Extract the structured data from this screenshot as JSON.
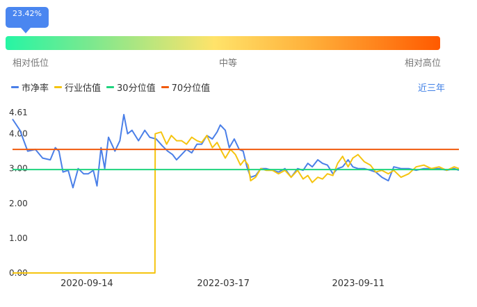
{
  "gauge": {
    "percentile_label": "23.42%",
    "percentile": 23.42,
    "low_label": "相对低位",
    "mid_label": "中等",
    "high_label": "相对高位",
    "colors": [
      "#26f5a4",
      "#ffe36a",
      "#ff5a00"
    ]
  },
  "period_label": "近三年",
  "chart_data": {
    "type": "line",
    "title": "",
    "xlabel": "",
    "ylabel": "",
    "ylim": [
      0,
      4.61
    ],
    "y_ticks": [
      "0.00",
      "1.00",
      "2.00",
      "3.00",
      "4.00",
      "4.61"
    ],
    "x_ticks": [
      "2020-09-14",
      "2022-03-17",
      "2023-09-11"
    ],
    "x_range": [
      "2019-11-20",
      "2024-10-20"
    ],
    "legend_position": "top-left",
    "grid": false,
    "series": [
      {
        "name": "市净率",
        "color": "#4a7fe8",
        "points": [
          [
            "2019-11-20",
            4.42
          ],
          [
            "2019-12-20",
            4.1
          ],
          [
            "2020-01-20",
            3.5
          ],
          [
            "2020-02-20",
            3.55
          ],
          [
            "2020-03-20",
            3.3
          ],
          [
            "2020-04-20",
            3.25
          ],
          [
            "2020-05-10",
            3.6
          ],
          [
            "2020-05-25",
            3.5
          ],
          [
            "2020-06-10",
            2.9
          ],
          [
            "2020-07-01",
            2.95
          ],
          [
            "2020-07-20",
            2.45
          ],
          [
            "2020-08-10",
            3.0
          ],
          [
            "2020-09-01",
            2.85
          ],
          [
            "2020-09-20",
            2.85
          ],
          [
            "2020-10-10",
            2.95
          ],
          [
            "2020-10-25",
            2.5
          ],
          [
            "2020-11-10",
            3.6
          ],
          [
            "2020-11-25",
            3.0
          ],
          [
            "2020-12-10",
            3.9
          ],
          [
            "2021-01-05",
            3.5
          ],
          [
            "2021-01-25",
            3.8
          ],
          [
            "2021-02-10",
            4.55
          ],
          [
            "2021-02-25",
            4.0
          ],
          [
            "2021-03-15",
            4.1
          ],
          [
            "2021-04-10",
            3.8
          ],
          [
            "2021-05-05",
            4.1
          ],
          [
            "2021-05-25",
            3.9
          ],
          [
            "2021-06-20",
            3.85
          ],
          [
            "2021-07-15",
            3.65
          ],
          [
            "2021-08-05",
            3.5
          ],
          [
            "2021-08-25",
            3.4
          ],
          [
            "2021-09-10",
            3.25
          ],
          [
            "2021-09-30",
            3.4
          ],
          [
            "2021-10-20",
            3.55
          ],
          [
            "2021-11-10",
            3.45
          ],
          [
            "2021-12-01",
            3.7
          ],
          [
            "2021-12-20",
            3.7
          ],
          [
            "2022-01-10",
            3.95
          ],
          [
            "2022-02-01",
            3.85
          ],
          [
            "2022-02-20",
            4.05
          ],
          [
            "2022-03-05",
            4.25
          ],
          [
            "2022-03-25",
            4.1
          ],
          [
            "2022-04-10",
            3.6
          ],
          [
            "2022-04-30",
            3.85
          ],
          [
            "2022-05-20",
            3.55
          ],
          [
            "2022-06-05",
            3.5
          ],
          [
            "2022-06-20",
            3.05
          ],
          [
            "2022-07-05",
            2.75
          ],
          [
            "2022-07-25",
            2.8
          ],
          [
            "2022-08-15",
            3.0
          ],
          [
            "2022-09-05",
            3.0
          ],
          [
            "2022-10-01",
            2.95
          ],
          [
            "2022-10-25",
            2.9
          ],
          [
            "2022-11-20",
            3.0
          ],
          [
            "2022-12-15",
            2.75
          ],
          [
            "2023-01-10",
            3.0
          ],
          [
            "2023-02-01",
            2.95
          ],
          [
            "2023-02-20",
            3.15
          ],
          [
            "2023-03-10",
            3.05
          ],
          [
            "2023-04-01",
            3.25
          ],
          [
            "2023-04-20",
            3.15
          ],
          [
            "2023-05-10",
            3.1
          ],
          [
            "2023-06-01",
            2.85
          ],
          [
            "2023-06-20",
            3.0
          ],
          [
            "2023-07-10",
            3.05
          ],
          [
            "2023-08-01",
            3.25
          ],
          [
            "2023-08-20",
            3.05
          ],
          [
            "2023-09-10",
            3.0
          ],
          [
            "2023-10-05",
            3.0
          ],
          [
            "2023-10-30",
            2.95
          ],
          [
            "2023-11-20",
            2.9
          ],
          [
            "2023-12-15",
            2.75
          ],
          [
            "2024-01-10",
            2.65
          ],
          [
            "2024-02-01",
            3.05
          ],
          [
            "2024-03-01",
            3.0
          ],
          [
            "2024-04-01",
            3.0
          ],
          [
            "2024-05-01",
            2.95
          ],
          [
            "2024-06-01",
            3.0
          ],
          [
            "2024-07-01",
            3.0
          ],
          [
            "2024-08-01",
            3.0
          ],
          [
            "2024-09-01",
            2.95
          ],
          [
            "2024-10-01",
            3.0
          ],
          [
            "2024-10-20",
            2.95
          ]
        ]
      },
      {
        "name": "行业估值",
        "color": "#f5c40f",
        "points": [
          [
            "2019-11-20",
            0.0
          ],
          [
            "2021-06-15",
            0.0
          ],
          [
            "2021-06-16",
            4.0
          ],
          [
            "2021-07-10",
            4.05
          ],
          [
            "2021-08-01",
            3.7
          ],
          [
            "2021-08-20",
            3.95
          ],
          [
            "2021-09-10",
            3.8
          ],
          [
            "2021-09-30",
            3.8
          ],
          [
            "2021-10-20",
            3.7
          ],
          [
            "2021-11-10",
            3.9
          ],
          [
            "2021-12-01",
            3.8
          ],
          [
            "2021-12-20",
            3.75
          ],
          [
            "2022-01-10",
            3.95
          ],
          [
            "2022-02-01",
            3.6
          ],
          [
            "2022-02-20",
            3.75
          ],
          [
            "2022-03-10",
            3.5
          ],
          [
            "2022-03-25",
            3.3
          ],
          [
            "2022-04-15",
            3.55
          ],
          [
            "2022-05-05",
            3.4
          ],
          [
            "2022-05-25",
            3.1
          ],
          [
            "2022-06-10",
            3.25
          ],
          [
            "2022-06-25",
            3.1
          ],
          [
            "2022-07-05",
            2.65
          ],
          [
            "2022-07-25",
            2.75
          ],
          [
            "2022-08-15",
            3.0
          ],
          [
            "2022-09-05",
            2.95
          ],
          [
            "2022-10-01",
            2.95
          ],
          [
            "2022-10-25",
            2.85
          ],
          [
            "2022-11-20",
            2.95
          ],
          [
            "2022-12-15",
            2.75
          ],
          [
            "2023-01-10",
            2.95
          ],
          [
            "2023-02-01",
            2.7
          ],
          [
            "2023-02-20",
            2.8
          ],
          [
            "2023-03-10",
            2.6
          ],
          [
            "2023-04-01",
            2.75
          ],
          [
            "2023-04-20",
            2.7
          ],
          [
            "2023-05-10",
            2.85
          ],
          [
            "2023-06-01",
            2.8
          ],
          [
            "2023-06-20",
            3.15
          ],
          [
            "2023-07-10",
            3.35
          ],
          [
            "2023-08-01",
            3.05
          ],
          [
            "2023-08-20",
            3.3
          ],
          [
            "2023-09-10",
            3.4
          ],
          [
            "2023-10-05",
            3.2
          ],
          [
            "2023-10-30",
            3.1
          ],
          [
            "2023-11-20",
            2.9
          ],
          [
            "2023-12-15",
            2.95
          ],
          [
            "2024-01-10",
            2.85
          ],
          [
            "2024-02-01",
            2.95
          ],
          [
            "2024-03-01",
            2.75
          ],
          [
            "2024-04-01",
            2.85
          ],
          [
            "2024-05-01",
            3.05
          ],
          [
            "2024-06-01",
            3.1
          ],
          [
            "2024-07-01",
            3.0
          ],
          [
            "2024-08-01",
            3.05
          ],
          [
            "2024-09-01",
            2.95
          ],
          [
            "2024-10-01",
            3.05
          ],
          [
            "2024-10-20",
            3.0
          ]
        ]
      },
      {
        "name": "30分位值",
        "color": "#1ed47e",
        "constant": 2.97
      },
      {
        "name": "70分位值",
        "color": "#f15a0c",
        "constant": 3.55
      }
    ]
  }
}
